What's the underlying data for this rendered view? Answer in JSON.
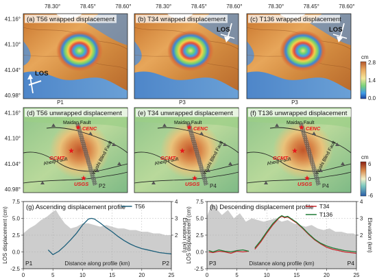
{
  "figure": {
    "top_axis_labels": [
      "78.30°",
      "78.45°",
      "78.60°"
    ],
    "row1_lat_labels": [
      "41.16°",
      "41.10°",
      "41.04°",
      "40.98°"
    ],
    "row2_lat_labels": [
      "41.16°",
      "41.10°",
      "41.04°",
      "40.98°"
    ],
    "colorbar_wrapped": {
      "unit": "cm",
      "ticks": [
        "2.8",
        "1.4",
        "0.0"
      ]
    },
    "colorbar_unwrapped": {
      "unit": "cm",
      "ticks": [
        "6",
        "0",
        "-6"
      ]
    },
    "maps_wrapped": [
      {
        "title": "(a) T56 wrapped displacement",
        "los_label": "LOS",
        "bottom_label": "P1"
      },
      {
        "title": "(b) T34 wrapped displacement",
        "los_label": "LOS",
        "bottom_label": "P3"
      },
      {
        "title": "(c) T136 wrapped displacement",
        "los_label": "LOS",
        "bottom_label": "P3"
      }
    ],
    "maps_unwrapped": [
      {
        "title": "(d) T56 unwrapped displacement",
        "end_label": "P2"
      },
      {
        "title": "(e) T34 unwrapped displacement",
        "end_label": "P4"
      },
      {
        "title": "(f) T136 unwrapped displacement",
        "end_label": "P4"
      }
    ],
    "fault_labels": {
      "maidan": "Maidan Fault",
      "aheqi": "Aheqi Fault",
      "wushi": "Wushi Blind Fault"
    },
    "station_labels": {
      "cenc": "CENC",
      "gcmt": "GCMT",
      "usgs": "USGS"
    },
    "colors": {
      "los_line": "#1b5e7a",
      "t34": "#c8262b",
      "t136": "#1f7a35",
      "elevation_fill": "#c8c8c8",
      "star": "#e8161b"
    }
  },
  "chart_data": [
    {
      "type": "line",
      "title": "(g) Ascending displacement profile",
      "xlabel": "Distance along profile (km)",
      "ylabel": "LOS displacement (cm)",
      "y2label": "Elevation (km)",
      "xlim": [
        0,
        25
      ],
      "ylim": [
        -2.5,
        7.5
      ],
      "y2lim": [
        0,
        4
      ],
      "xticks": [
        "0",
        "5",
        "10",
        "15",
        "20",
        "25"
      ],
      "yticks": [
        "-2.5",
        "0.0",
        "2.5",
        "5.0",
        "7.5"
      ],
      "y2ticks": [
        "2",
        "3",
        "4"
      ],
      "start_label": "P1",
      "end_label": "P2",
      "elevation": {
        "x": [
          0,
          1,
          2,
          3,
          4,
          5,
          5.5,
          6,
          7,
          8,
          9,
          10,
          11,
          12,
          13,
          14,
          15,
          16,
          17,
          18,
          19,
          20,
          21,
          22,
          23,
          24,
          25
        ],
        "y": [
          2.1,
          2.4,
          2.6,
          2.9,
          3.1,
          3.4,
          3.5,
          3.2,
          2.7,
          2.4,
          2.5,
          2.7,
          2.7,
          2.6,
          2.5,
          2.6,
          2.5,
          2.4,
          2.4,
          2.3,
          2.3,
          2.2,
          2.2,
          2.1,
          2.1,
          2.0,
          2.0
        ]
      },
      "series": [
        {
          "name": "T56",
          "x": [
            4.2,
            5,
            6,
            7,
            8,
            9,
            10,
            11,
            11.5,
            12,
            13,
            14,
            15,
            16,
            17,
            18,
            19,
            20,
            21,
            22,
            23,
            24,
            25
          ],
          "y": [
            0.3,
            -0.4,
            0.1,
            0.9,
            1.8,
            2.8,
            4.0,
            4.9,
            5.0,
            4.9,
            4.3,
            3.6,
            3.0,
            2.3,
            1.7,
            1.2,
            0.8,
            0.5,
            0.3,
            0.1,
            -0.1,
            -0.2,
            -0.3
          ]
        }
      ],
      "legend": "top-right",
      "grid": true
    },
    {
      "type": "line",
      "title": "(h) Descending displacement profile",
      "xlabel": "Distance along profile (km)",
      "ylabel": "LOS displacement (cm)",
      "y2label": "Elevation (km)",
      "xlim": [
        0,
        25
      ],
      "ylim": [
        -2.5,
        7.5
      ],
      "y2lim": [
        0,
        4
      ],
      "xticks": [
        "0",
        "5",
        "10",
        "15",
        "20",
        "25"
      ],
      "yticks": [
        "-2.5",
        "0.0",
        "2.5",
        "5.0",
        "7.5"
      ],
      "y2ticks": [
        "2",
        "3",
        "4"
      ],
      "start_label": "P3",
      "end_label": "P4",
      "elevation": {
        "x": [
          0,
          0.8,
          1.5,
          2.5,
          3.5,
          4.5,
          5.5,
          6.5,
          7.5,
          8.5,
          9.5,
          10.5,
          11.5,
          12.5,
          13.5,
          14.5,
          15.5,
          16.5,
          17.5,
          18.5,
          19.5,
          20.5,
          21.5,
          22.5,
          23.5,
          24.5,
          25
        ],
        "y": [
          3.1,
          3.9,
          3.6,
          3.2,
          3.5,
          3.0,
          3.3,
          2.8,
          3.0,
          2.9,
          2.8,
          2.9,
          3.0,
          2.8,
          2.9,
          2.7,
          2.6,
          2.5,
          2.6,
          2.4,
          2.3,
          2.4,
          2.2,
          2.2,
          2.1,
          2.1,
          2.0
        ]
      },
      "series": [
        {
          "name": "T34",
          "segments": [
            {
              "x": [
                0.3,
                1,
                2,
                3,
                4,
                5,
                6,
                7
              ],
              "y": [
                0.0,
                -0.1,
                0.1,
                0.0,
                -0.2,
                0.1,
                0.0,
                0.1
              ]
            },
            {
              "x": [
                8,
                9,
                10,
                11,
                12,
                12.5,
                13,
                13.5,
                14,
                15,
                16,
                17,
                18,
                19,
                20,
                21,
                22,
                23,
                24,
                25
              ],
              "y": [
                0.4,
                1.5,
                2.8,
                4.0,
                5.0,
                5.3,
                5.1,
                5.2,
                4.9,
                4.3,
                3.5,
                2.6,
                1.8,
                1.2,
                0.7,
                0.4,
                0.2,
                0.0,
                -0.1,
                -0.2
              ]
            }
          ]
        },
        {
          "name": "T136",
          "segments": [
            {
              "x": [
                0.3,
                1,
                2,
                3,
                4,
                5,
                6,
                7
              ],
              "y": [
                0.2,
                0.0,
                0.3,
                0.1,
                0.0,
                0.2,
                0.3,
                0.1
              ]
            },
            {
              "x": [
                8,
                9,
                10,
                11,
                12,
                12.5,
                13,
                13.5,
                14,
                15,
                16,
                17,
                18,
                19,
                20,
                21,
                22,
                23,
                24,
                25
              ],
              "y": [
                0.6,
                1.7,
                3.0,
                4.2,
                5.1,
                5.4,
                5.2,
                5.3,
                5.0,
                4.4,
                3.6,
                2.7,
                1.9,
                1.3,
                0.9,
                0.6,
                0.4,
                0.2,
                0.1,
                0.0
              ]
            }
          ]
        }
      ],
      "legend": "top-right",
      "grid": true
    }
  ]
}
